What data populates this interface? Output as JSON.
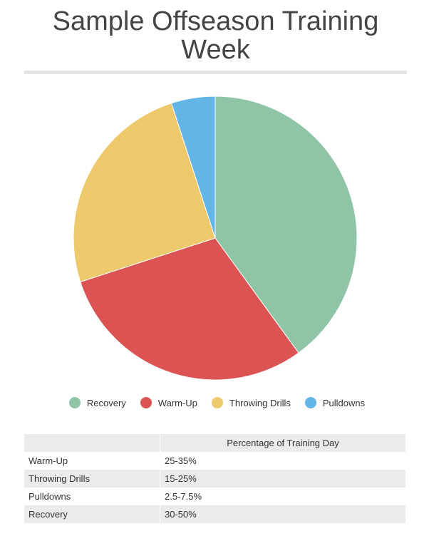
{
  "title": "Sample Offseason Training Week",
  "chart_data": {
    "type": "pie",
    "title": "Sample Offseason Training Week",
    "slices": [
      {
        "label": "Recovery",
        "value": 40,
        "color": "#8fc4a6"
      },
      {
        "label": "Warm-Up",
        "value": 30,
        "color": "#dc5353"
      },
      {
        "label": "Throwing Drills",
        "value": 25,
        "color": "#eec96b"
      },
      {
        "label": "Pulldowns",
        "value": 5,
        "color": "#62b5e5"
      }
    ],
    "legend_position": "bottom"
  },
  "table": {
    "header": [
      "",
      "Percentage of Training Day"
    ],
    "rows": [
      [
        "Warm-Up",
        "25-35%"
      ],
      [
        "Throwing Drills",
        "15-25%"
      ],
      [
        "Pulldowns",
        "2.5-7.5%"
      ],
      [
        "Recovery",
        "30-50%"
      ]
    ]
  }
}
